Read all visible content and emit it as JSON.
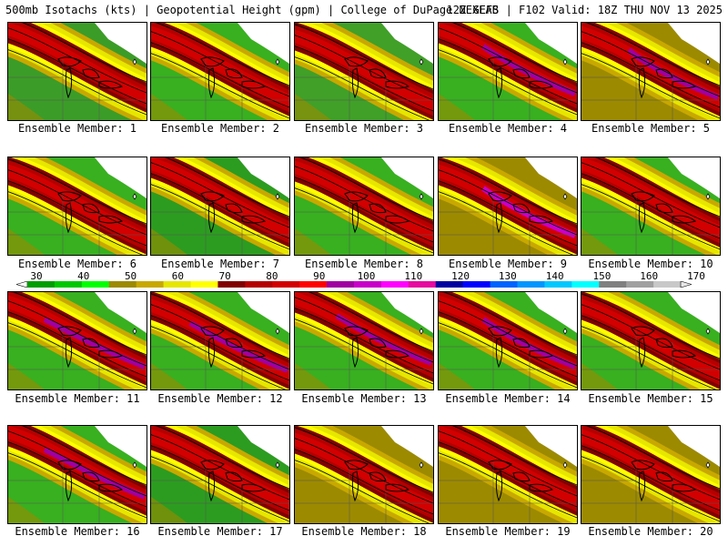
{
  "header": {
    "left": "500mb Isotachs (kts) | Geopotential Height (gpm) | College of DuPage NEXLAB",
    "right": "12Z GEFS | F102 Valid: 18Z THU NOV 13 2025"
  },
  "colorbar": {
    "ticks": [
      "30",
      "40",
      "50",
      "60",
      "70",
      "80",
      "90",
      "100",
      "110",
      "120",
      "130",
      "140",
      "150",
      "160",
      "170"
    ],
    "colors": [
      "#009e00",
      "#00c800",
      "#00ff00",
      "#9c8a00",
      "#c8a800",
      "#e6e600",
      "#ffff00",
      "#800000",
      "#b40000",
      "#d20000",
      "#ff0000",
      "#a000a0",
      "#c800c8",
      "#ff00ff",
      "#e60aa0",
      "#0000a0",
      "#0000ff",
      "#0064ff",
      "#0096ff",
      "#00c8ff",
      "#00ffff",
      "#808080",
      "#a0a0a0",
      "#c8c8c8"
    ]
  },
  "members": [
    {
      "label": "Ensemble Member: 1",
      "peak": "#d20000",
      "bg": "#3c9c28"
    },
    {
      "label": "Ensemble Member: 2",
      "peak": "#d20000",
      "bg": "#38b020"
    },
    {
      "label": "Ensemble Member: 3",
      "peak": "#d20000",
      "bg": "#40a028"
    },
    {
      "label": "Ensemble Member: 4",
      "peak": "#a000a0",
      "bg": "#38b020"
    },
    {
      "label": "Ensemble Member: 5",
      "peak": "#a000a0",
      "bg": "#9c8a00"
    },
    {
      "label": "Ensemble Member: 6",
      "peak": "#d20000",
      "bg": "#38b020"
    },
    {
      "label": "Ensemble Member: 7",
      "peak": "#d20000",
      "bg": "#2c9c20"
    },
    {
      "label": "Ensemble Member: 8",
      "peak": "#d20000",
      "bg": "#38b020"
    },
    {
      "label": "Ensemble Member: 9",
      "peak": "#c800c8",
      "bg": "#9c8a00"
    },
    {
      "label": "Ensemble Member: 10",
      "peak": "#d20000",
      "bg": "#38b020"
    },
    {
      "label": "Ensemble Member: 11",
      "peak": "#a000a0",
      "bg": "#38b020"
    },
    {
      "label": "Ensemble Member: 12",
      "peak": "#a000a0",
      "bg": "#38b020"
    },
    {
      "label": "Ensemble Member: 13",
      "peak": "#a000a0",
      "bg": "#38b020"
    },
    {
      "label": "Ensemble Member: 14",
      "peak": "#a000a0",
      "bg": "#38b020"
    },
    {
      "label": "Ensemble Member: 15",
      "peak": "#d20000",
      "bg": "#38b020"
    },
    {
      "label": "Ensemble Member: 16",
      "peak": "#a000a0",
      "bg": "#38b020"
    },
    {
      "label": "Ensemble Member: 17",
      "peak": "#d20000",
      "bg": "#2c9c20"
    },
    {
      "label": "Ensemble Member: 18",
      "peak": "#d20000",
      "bg": "#9c8a00"
    },
    {
      "label": "Ensemble Member: 19",
      "peak": "#d20000",
      "bg": "#9c8a00"
    },
    {
      "label": "Ensemble Member: 20",
      "peak": "#d20000",
      "bg": "#9c8a00"
    }
  ]
}
